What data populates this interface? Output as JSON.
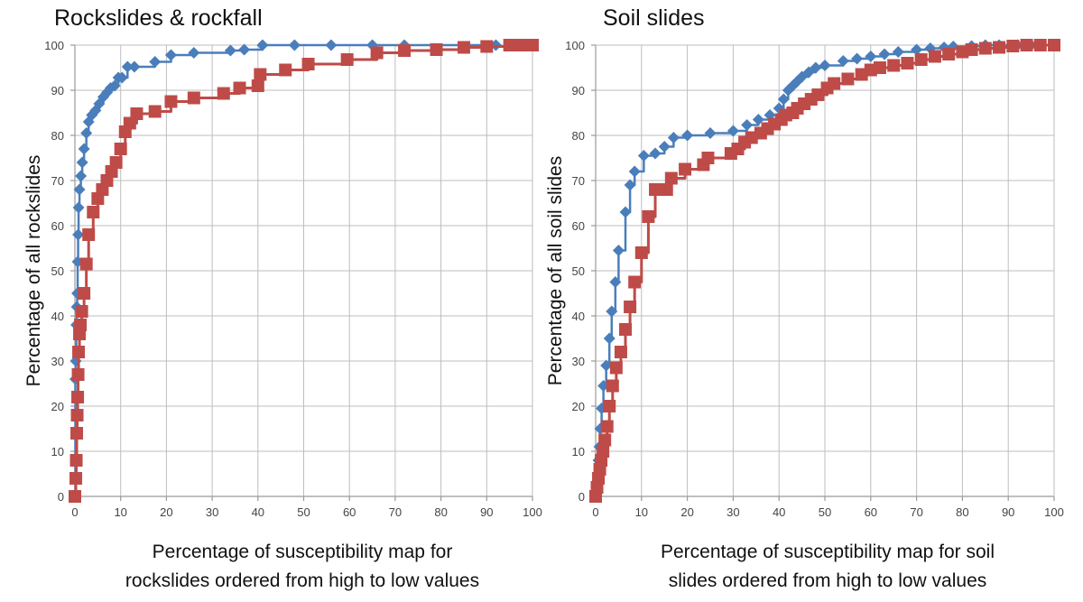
{
  "chart_data": [
    {
      "type": "line",
      "title": "Rockslides & rockfall",
      "xlabel": [
        "Percentage of susceptibility map for",
        "rockslides ordered from high to low values"
      ],
      "ylabel": "Percentage of all rockslides",
      "xlim": [
        0,
        100
      ],
      "ylim": [
        0,
        100
      ],
      "xticks": [
        0,
        10,
        20,
        30,
        40,
        50,
        60,
        70,
        80,
        90,
        100
      ],
      "yticks": [
        0,
        10,
        20,
        30,
        40,
        50,
        60,
        70,
        80,
        90,
        100
      ],
      "grid": true,
      "legend": "none",
      "series": [
        {
          "name": "blue-diamonds",
          "color": "#4a7ebb",
          "marker": "diamond",
          "x": [
            0,
            0.1,
            0.2,
            0.3,
            0.4,
            0.5,
            0.6,
            0.7,
            0.8,
            1.0,
            1.3,
            1.6,
            2.0,
            2.5,
            3.0,
            3.7,
            4.5,
            5.3,
            6.2,
            7.0,
            7.8,
            8.7,
            9.5,
            10.3,
            11.5,
            13.0,
            17.5,
            21.0,
            26.0,
            34.0,
            37.0,
            41.0,
            48.0,
            56.0,
            65.0,
            72.0,
            92.0
          ],
          "y": [
            0,
            26,
            30,
            38,
            42,
            45,
            52,
            58,
            64,
            68,
            71,
            74,
            77,
            80.5,
            83,
            84.5,
            85.5,
            87,
            88.5,
            89.5,
            90.5,
            91,
            92.8,
            92.8,
            95.2,
            95.2,
            96.3,
            97.8,
            98.3,
            98.8,
            99,
            100,
            100,
            100,
            100,
            100,
            100
          ]
        },
        {
          "name": "red-squares",
          "color": "#be4b48",
          "marker": "square",
          "x": [
            0,
            0.2,
            0.3,
            0.4,
            0.5,
            0.6,
            0.7,
            0.8,
            1.0,
            1.2,
            1.5,
            2.0,
            2.5,
            3.0,
            4.0,
            5.0,
            6.0,
            7.0,
            8.0,
            9.0,
            10.0,
            11.0,
            12.0,
            13.5,
            17.5,
            21.0,
            26.0,
            32.5,
            36.0,
            40.0,
            40.5,
            46.0,
            51.0,
            59.5,
            66.0,
            72.0,
            79.0,
            85.0,
            90.0,
            95.0,
            97.0,
            99.0,
            100
          ],
          "y": [
            0,
            4,
            8,
            14,
            18,
            22,
            27,
            32,
            36,
            38,
            41,
            45,
            51.5,
            58,
            63,
            66,
            68,
            70,
            72,
            74,
            77,
            80.8,
            82.7,
            84.8,
            85.3,
            87.5,
            88.3,
            89.3,
            90.5,
            91,
            93.5,
            94.5,
            95.8,
            96.8,
            98.3,
            98.8,
            99,
            99.5,
            99.7,
            100,
            100,
            100,
            100
          ]
        }
      ]
    },
    {
      "type": "line",
      "title": "Soil slides",
      "xlabel": [
        "Percentage of susceptibility map for soil",
        "slides ordered from high to low values"
      ],
      "ylabel": "Percentage of all soil slides",
      "xlim": [
        0,
        100
      ],
      "ylim": [
        0,
        100
      ],
      "xticks": [
        0,
        10,
        20,
        30,
        40,
        50,
        60,
        70,
        80,
        90,
        100
      ],
      "yticks": [
        0,
        10,
        20,
        30,
        40,
        50,
        60,
        70,
        80,
        90,
        100
      ],
      "grid": true,
      "legend": "none",
      "series": [
        {
          "name": "blue-diamonds",
          "color": "#4a7ebb",
          "marker": "diamond",
          "x": [
            0,
            0.2,
            0.4,
            0.6,
            0.8,
            1.0,
            1.3,
            1.7,
            2.3,
            3.0,
            3.5,
            4.3,
            5.0,
            6.5,
            7.5,
            8.5,
            10.5,
            13.0,
            15.0,
            17.0,
            20.0,
            25.0,
            30.0,
            33.0,
            35.5,
            38.0,
            40.0,
            41.0,
            42.0,
            43.0,
            44.0,
            45.0,
            46.5,
            48.0,
            50.0,
            54.0,
            57.0,
            60.0,
            63.0,
            66.0,
            70.0,
            73.0,
            76.0,
            78.0,
            82.0,
            85.0,
            88.0,
            92.0,
            95.0,
            100
          ],
          "y": [
            0,
            2,
            5,
            8,
            11,
            15,
            19.5,
            24.5,
            29,
            35,
            41,
            47.5,
            54.5,
            63,
            69,
            72,
            75.5,
            76,
            77.5,
            79.5,
            80,
            80.5,
            81,
            82.3,
            83.5,
            84.5,
            86,
            88,
            90,
            91,
            92,
            93,
            94,
            95,
            95.5,
            96.5,
            97,
            97.5,
            98,
            98.5,
            99,
            99.3,
            99.5,
            99.7,
            99.8,
            100,
            100,
            100,
            100,
            100
          ]
        },
        {
          "name": "red-squares",
          "color": "#be4b48",
          "marker": "square",
          "x": [
            0,
            0.3,
            0.6,
            0.9,
            1.2,
            1.6,
            2.0,
            2.5,
            3.0,
            3.7,
            4.5,
            5.5,
            6.5,
            7.5,
            8.5,
            10.0,
            11.5,
            13.0,
            15.5,
            16.5,
            19.5,
            23.5,
            24.5,
            29.5,
            31.0,
            32.5,
            34.0,
            36.0,
            37.5,
            39.0,
            40.5,
            41.5,
            43.0,
            44.0,
            45.5,
            47.0,
            48.5,
            50.5,
            52.0,
            55.0,
            58.0,
            60.0,
            62.0,
            65.0,
            68.0,
            71.0,
            74.0,
            77.0,
            80.0,
            82.0,
            85.0,
            88.0,
            91.0,
            94.0,
            97.0,
            100
          ],
          "y": [
            0,
            2,
            4,
            6,
            8,
            10,
            12.5,
            15.5,
            20,
            24.5,
            28.5,
            32,
            37,
            42,
            47.5,
            54,
            62,
            68,
            68,
            70.5,
            72.5,
            73.5,
            75,
            76,
            77,
            78.5,
            79.5,
            80.5,
            81.5,
            82.5,
            83.5,
            84.5,
            85,
            86,
            87,
            88,
            89,
            90.5,
            91.5,
            92.5,
            93.5,
            94.5,
            95,
            95.5,
            96,
            96.8,
            97.5,
            98,
            98.5,
            99,
            99.3,
            99.5,
            99.8,
            100,
            100,
            100
          ]
        }
      ]
    }
  ]
}
